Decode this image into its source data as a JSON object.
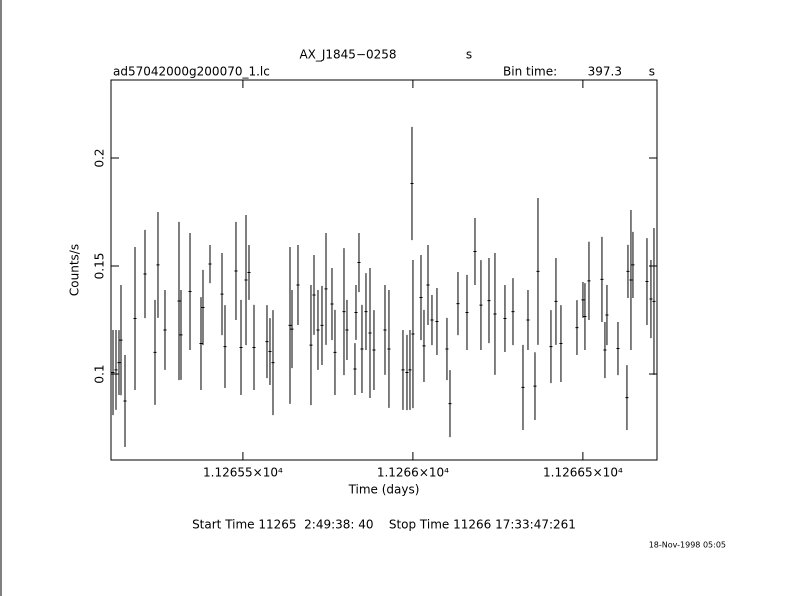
{
  "chart_data": {
    "type": "errorbar",
    "title": "AX_J1845−0258",
    "title_unit": "s",
    "file_label": "ad57042000g200070_1.lc",
    "bin_time_label": "Bin time:",
    "bin_time": 397.3,
    "bin_time_unit": "s",
    "x_label": "Time (days)",
    "y_label": "Counts/s",
    "start_stop": "Start Time 11265  2:49:38: 40    Stop Time 11266 17:33:47:261",
    "timestamp": "18-Nov-1998 05:05",
    "color": "#000000",
    "xlim": [
      11265.112,
      11266.718
    ],
    "ylim": [
      0.0602,
      0.2361
    ],
    "xticks": [
      {
        "value": 11265.5,
        "label": "1.12655×10⁴"
      },
      {
        "value": 11266,
        "label": "1.1266×10⁴"
      },
      {
        "value": 11266.5,
        "label": "1.12665×10⁴"
      }
    ],
    "yticks": [
      0.1,
      0.15,
      0.2
    ],
    "x": [
      11265.1179,
      11265.1267,
      11265.1355,
      11265.1414,
      11265.1532,
      11265.1826,
      11265.212,
      11265.2414,
      11265.2502,
      11265.2708,
      11265.312,
      11265.3179,
      11265.3444,
      11265.3767,
      11265.3826,
      11265.4032,
      11265.4385,
      11265.4473,
      11265.4796,
      11265.4944,
      11265.5091,
      11265.5179,
      11265.5326,
      11265.5708,
      11265.5796,
      11265.5885,
      11265.6385,
      11265.6444,
      11265.662,
      11265.7002,
      11265.7091,
      11265.7208,
      11265.7326,
      11265.7444,
      11265.762,
      11265.7708,
      11265.7973,
      11265.8061,
      11265.8296,
      11265.8326,
      11265.8414,
      11265.8502,
      11265.862,
      11265.8738,
      11265.8855,
      11265.9179,
      11265.9296,
      11265.9708,
      11265.9826,
      11265.9914,
      11265.9973,
      11266.0002,
      11266.0238,
      11266.0326,
      11266.0444,
      11266.0561,
      11266.0708,
      11266.1002,
      11266.1091,
      11266.1326,
      11266.1591,
      11266.1826,
      11266.2002,
      11266.2238,
      11266.2414,
      11266.2708,
      11266.2944,
      11266.3238,
      11266.3385,
      11266.3591,
      11266.3679,
      11266.4061,
      11266.4208,
      11266.4355,
      11266.4826,
      11266.5002,
      11266.5061,
      11266.5179,
      11266.5561,
      11266.5649,
      11266.5708,
      11266.6032,
      11266.6296,
      11266.6326,
      11266.6414,
      11266.6473,
      11266.6885,
      11266.7002,
      11266.7091
    ],
    "values": [
      0.1007,
      0.1019,
      0.1053,
      0.1157,
      0.0875,
      0.1257,
      0.1463,
      0.11,
      0.1505,
      0.1204,
      0.1338,
      0.1181,
      0.1382,
      0.1141,
      0.1308,
      0.1509,
      0.137,
      0.1127,
      0.1477,
      0.1123,
      0.1435,
      0.147,
      0.1123,
      0.115,
      0.1104,
      0.1053,
      0.1225,
      0.1208,
      0.1412,
      0.1134,
      0.1366,
      0.1204,
      0.1225,
      0.1394,
      0.1324,
      0.11,
      0.1289,
      0.1204,
      0.1023,
      0.1285,
      0.1516,
      0.1116,
      0.1289,
      0.119,
      0.1111,
      0.1204,
      0.1116,
      0.1019,
      0.1007,
      0.1019,
      0.1882,
      0.1185,
      0.1354,
      0.113,
      0.1412,
      0.125,
      0.1243,
      0.1116,
      0.0863,
      0.1326,
      0.1285,
      0.1567,
      0.1319,
      0.134,
      0.1278,
      0.1257,
      0.1289,
      0.0938,
      0.125,
      0.0944,
      0.1475,
      0.1127,
      0.1336,
      0.1141,
      0.1215,
      0.1343,
      0.1266,
      0.1431,
      0.1438,
      0.1111,
      0.1273,
      0.1118,
      0.0891,
      0.1475,
      0.1435,
      0.1505,
      0.1428,
      0.1347,
      0.1336
    ],
    "errors": [
      0.0197,
      0.0185,
      0.015,
      0.0255,
      0.0213,
      0.0331,
      0.0204,
      0.0243,
      0.0245,
      0.0185,
      0.0366,
      0.0208,
      0.0271,
      0.0215,
      0.0174,
      0.0088,
      0.019,
      0.0192,
      0.0227,
      0.022,
      0.0301,
      0.0127,
      0.0197,
      0.0169,
      0.0155,
      0.0243,
      0.0363,
      0.0181,
      0.0185,
      0.0278,
      0.0185,
      0.0185,
      0.0183,
      0.0259,
      0.0167,
      0.0197,
      0.0294,
      0.0139,
      0.012,
      0.0127,
      0.0137,
      0.0204,
      0.0178,
      0.0301,
      0.0185,
      0.0208,
      0.0273,
      0.0185,
      0.0174,
      0.0185,
      0.0262,
      0.0343,
      0.0197,
      0.0167,
      0.0185,
      0.0116,
      0.0155,
      0.0144,
      0.0155,
      0.0146,
      0.0174,
      0.0155,
      0.0208,
      0.0197,
      0.0282,
      0.0155,
      0.0155,
      0.0197,
      0.0139,
      0.0157,
      0.034,
      0.0169,
      0.0201,
      0.0178,
      0.0127,
      0.0083,
      0.0155,
      0.0181,
      0.0197,
      0.013,
      0.0139,
      0.0123,
      0.015,
      0.0123,
      0.0324,
      0.0153,
      0.0201,
      0.0181,
      0.034
    ]
  }
}
